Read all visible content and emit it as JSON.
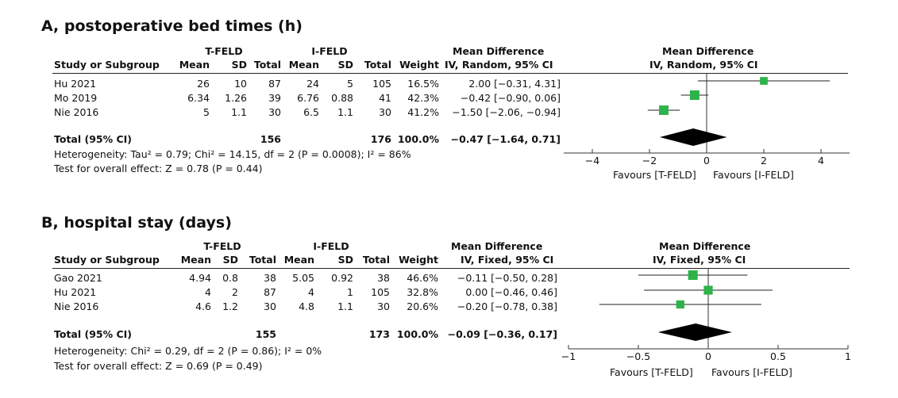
{
  "chart_data": [
    {
      "type": "forest",
      "title": "A, postoperative bed times (h)",
      "group1_name": "T-FELD",
      "group2_name": "I-FELD",
      "columns": [
        "Study or Subgroup",
        "Mean",
        "SD",
        "Total",
        "Mean",
        "SD",
        "Total",
        "Weight",
        "IV, Random, 95% CI"
      ],
      "effect_header": "Mean Difference",
      "plot_header": "Mean Difference",
      "plot_subheader": "IV, Random, 95% CI",
      "studies": [
        {
          "name": "Hu 2021",
          "mean1": "26",
          "sd1": "10",
          "n1": "87",
          "mean2": "24",
          "sd2": "5",
          "n2": "105",
          "weight": "16.5%",
          "ci_text": "2.00 [−0.31, 4.31]",
          "md": 2.0,
          "lo": -0.31,
          "hi": 4.31,
          "w": 16.5
        },
        {
          "name": "Mo 2019",
          "mean1": "6.34",
          "sd1": "1.26",
          "n1": "39",
          "mean2": "6.76",
          "sd2": "0.88",
          "n2": "41",
          "weight": "42.3%",
          "ci_text": "−0.42 [−0.90, 0.06]",
          "md": -0.42,
          "lo": -0.9,
          "hi": 0.06,
          "w": 42.3
        },
        {
          "name": "Nie 2016",
          "mean1": "5",
          "sd1": "1.1",
          "n1": "30",
          "mean2": "6.5",
          "sd2": "1.1",
          "n2": "30",
          "weight": "41.2%",
          "ci_text": "−1.50 [−2.06, −0.94]",
          "md": -1.5,
          "lo": -2.06,
          "hi": -0.94,
          "w": 41.2
        }
      ],
      "total": {
        "name": "Total (95% CI)",
        "n1": "156",
        "n2": "176",
        "weight": "100.0%",
        "ci_text": "−0.47 [−1.64, 0.71]",
        "md": -0.47,
        "lo": -1.64,
        "hi": 0.71
      },
      "heterogeneity": "Heterogeneity: Tau² = 0.79; Chi² = 14.15, df = 2 (P = 0.0008); I² = 86%",
      "overall_effect": "Test for overall effect: Z = 0.78 (P = 0.44)",
      "xlim": [
        -5,
        5
      ],
      "ticks": [
        -4,
        -2,
        0,
        2,
        4
      ],
      "tick_labels": [
        "−4",
        "−2",
        "0",
        "2",
        "4"
      ],
      "favours_left": "Favours [T-FELD]",
      "favours_right": "Favours [I-FELD]",
      "marker_color": "#2db34a"
    },
    {
      "type": "forest",
      "title": "B, hospital stay (days)",
      "group1_name": "T-FELD",
      "group2_name": "I-FELD",
      "columns": [
        "Study or Subgroup",
        "Mean",
        "SD",
        "Total",
        "Mean",
        "SD",
        "Total",
        "Weight",
        "IV, Fixed, 95% CI"
      ],
      "effect_header": "Mean Difference",
      "plot_header": "Mean Difference",
      "plot_subheader": "IV, Fixed, 95% CI",
      "studies": [
        {
          "name": "Gao 2021",
          "mean1": "4.94",
          "sd1": "0.8",
          "n1": "38",
          "mean2": "5.05",
          "sd2": "0.92",
          "n2": "38",
          "weight": "46.6%",
          "ci_text": "−0.11 [−0.50, 0.28]",
          "md": -0.11,
          "lo": -0.5,
          "hi": 0.28,
          "w": 46.6
        },
        {
          "name": "Hu 2021",
          "mean1": "4",
          "sd1": "2",
          "n1": "87",
          "mean2": "4",
          "sd2": "1",
          "n2": "105",
          "weight": "32.8%",
          "ci_text": "0.00 [−0.46, 0.46]",
          "md": 0.0,
          "lo": -0.46,
          "hi": 0.46,
          "w": 32.8
        },
        {
          "name": "Nie 2016",
          "mean1": "4.6",
          "sd1": "1.2",
          "n1": "30",
          "mean2": "4.8",
          "sd2": "1.1",
          "n2": "30",
          "weight": "20.6%",
          "ci_text": "−0.20 [−0.78, 0.38]",
          "md": -0.2,
          "lo": -0.78,
          "hi": 0.38,
          "w": 20.6
        }
      ],
      "total": {
        "name": "Total (95% CI)",
        "n1": "155",
        "n2": "173",
        "weight": "100.0%",
        "ci_text": "−0.09 [−0.36, 0.17]",
        "md": -0.09,
        "lo": -0.36,
        "hi": 0.17
      },
      "heterogeneity": "Heterogeneity: Chi² = 0.29, df = 2 (P = 0.86); I² = 0%",
      "overall_effect": "Test for overall effect: Z = 0.69 (P = 0.49)",
      "xlim": [
        -1,
        1
      ],
      "ticks": [
        -1,
        -0.5,
        0,
        0.5,
        1
      ],
      "tick_labels": [
        "−1",
        "−0.5",
        "0",
        "0.5",
        "1"
      ],
      "favours_left": "Favours [T-FELD]",
      "favours_right": "Favours [I-FELD]",
      "marker_color": "#2db34a"
    }
  ]
}
